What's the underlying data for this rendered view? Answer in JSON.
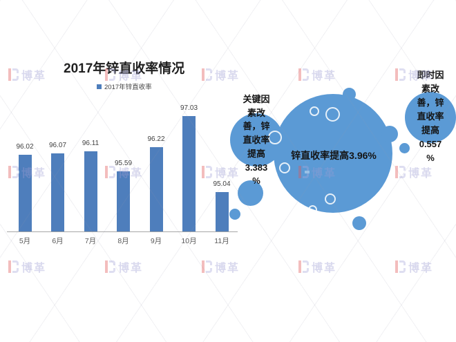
{
  "chart_data": {
    "type": "bar",
    "title": "2017年锌直收率情况",
    "legend": [
      "2017年锌直收率"
    ],
    "legend_position": "top",
    "categories": [
      "5月",
      "6月",
      "7月",
      "8月",
      "9月",
      "10月",
      "11月"
    ],
    "values": [
      96.02,
      96.07,
      96.11,
      95.59,
      96.22,
      97.03,
      95.04
    ],
    "xlabel": "",
    "ylabel": "",
    "ylim": [
      94,
      97.8
    ],
    "grid": false,
    "data_labels": true,
    "bar_color": "#4E7EBC"
  },
  "annotations": {
    "left": {
      "text": "关键因素改善，锌直收率提高3.383%",
      "lines": [
        "关键因",
        "素改",
        "善，锌",
        "直收率",
        "提高",
        "3.383",
        "%"
      ]
    },
    "main": {
      "text": "锌直收率提高3.96%"
    },
    "right": {
      "text": "即时因素改善，锌直收率提高0.557%",
      "lines": [
        "即时因",
        "素改",
        "善，锌",
        "直收率",
        "提高",
        "0.557",
        "%"
      ]
    }
  },
  "colors": {
    "bar": "#4E7EBC",
    "bubble": "#5B9AD5"
  },
  "watermark": {
    "text": "博革"
  }
}
